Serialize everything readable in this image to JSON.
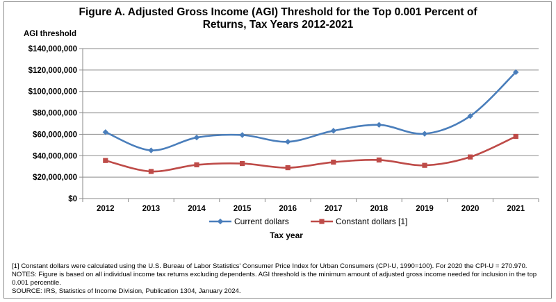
{
  "chart_data": {
    "type": "line",
    "title_lines": [
      "Figure A. Adjusted Gross Income (AGI) Threshold for the Top 0.001 Percent of",
      "Returns, Tax Years 2012-2021"
    ],
    "ylabel": "AGI threshold",
    "xlabel": "Tax year",
    "x": [
      "2012",
      "2013",
      "2014",
      "2015",
      "2016",
      "2017",
      "2018",
      "2019",
      "2020",
      "2021"
    ],
    "ylim": [
      0,
      140000000
    ],
    "yticks": [
      0,
      20000000,
      40000000,
      60000000,
      80000000,
      100000000,
      120000000,
      140000000
    ],
    "ytick_labels": [
      "$0",
      "$20,000,000",
      "$40,000,000",
      "$60,000,000",
      "$80,000,000",
      "$100,000,000",
      "$120,000,000",
      "$140,000,000"
    ],
    "grid": true,
    "legend_position": "bottom",
    "series": [
      {
        "name": "Current dollars",
        "color": "#4a7ebb",
        "marker": "diamond",
        "values": [
          62000000,
          45000000,
          57000000,
          59300000,
          53000000,
          63300000,
          68800000,
          60500000,
          77000000,
          118000000
        ]
      },
      {
        "name": "Constant dollars [1]",
        "color": "#be4b48",
        "marker": "square",
        "values": [
          35500000,
          25300000,
          31500000,
          32700000,
          28800000,
          34000000,
          36000000,
          31000000,
          38800000,
          58000000
        ]
      }
    ]
  },
  "notes": [
    "[1] Constant dollars were calculated using the U.S. Bureau of Labor Statistics' Consumer Price Index for Urban Consumers (CPI-U, 1990=100). For 2020 the CPI-U = 270.970.",
    "NOTES: Figure is based on all individual income tax returns excluding dependents. AGI threshold is the minimum amount of adjusted gross income needed for inclusion in the top 0.001 percentile.",
    "SOURCE: IRS, Statistics of Income Division, Publication 1304, January 2024."
  ]
}
